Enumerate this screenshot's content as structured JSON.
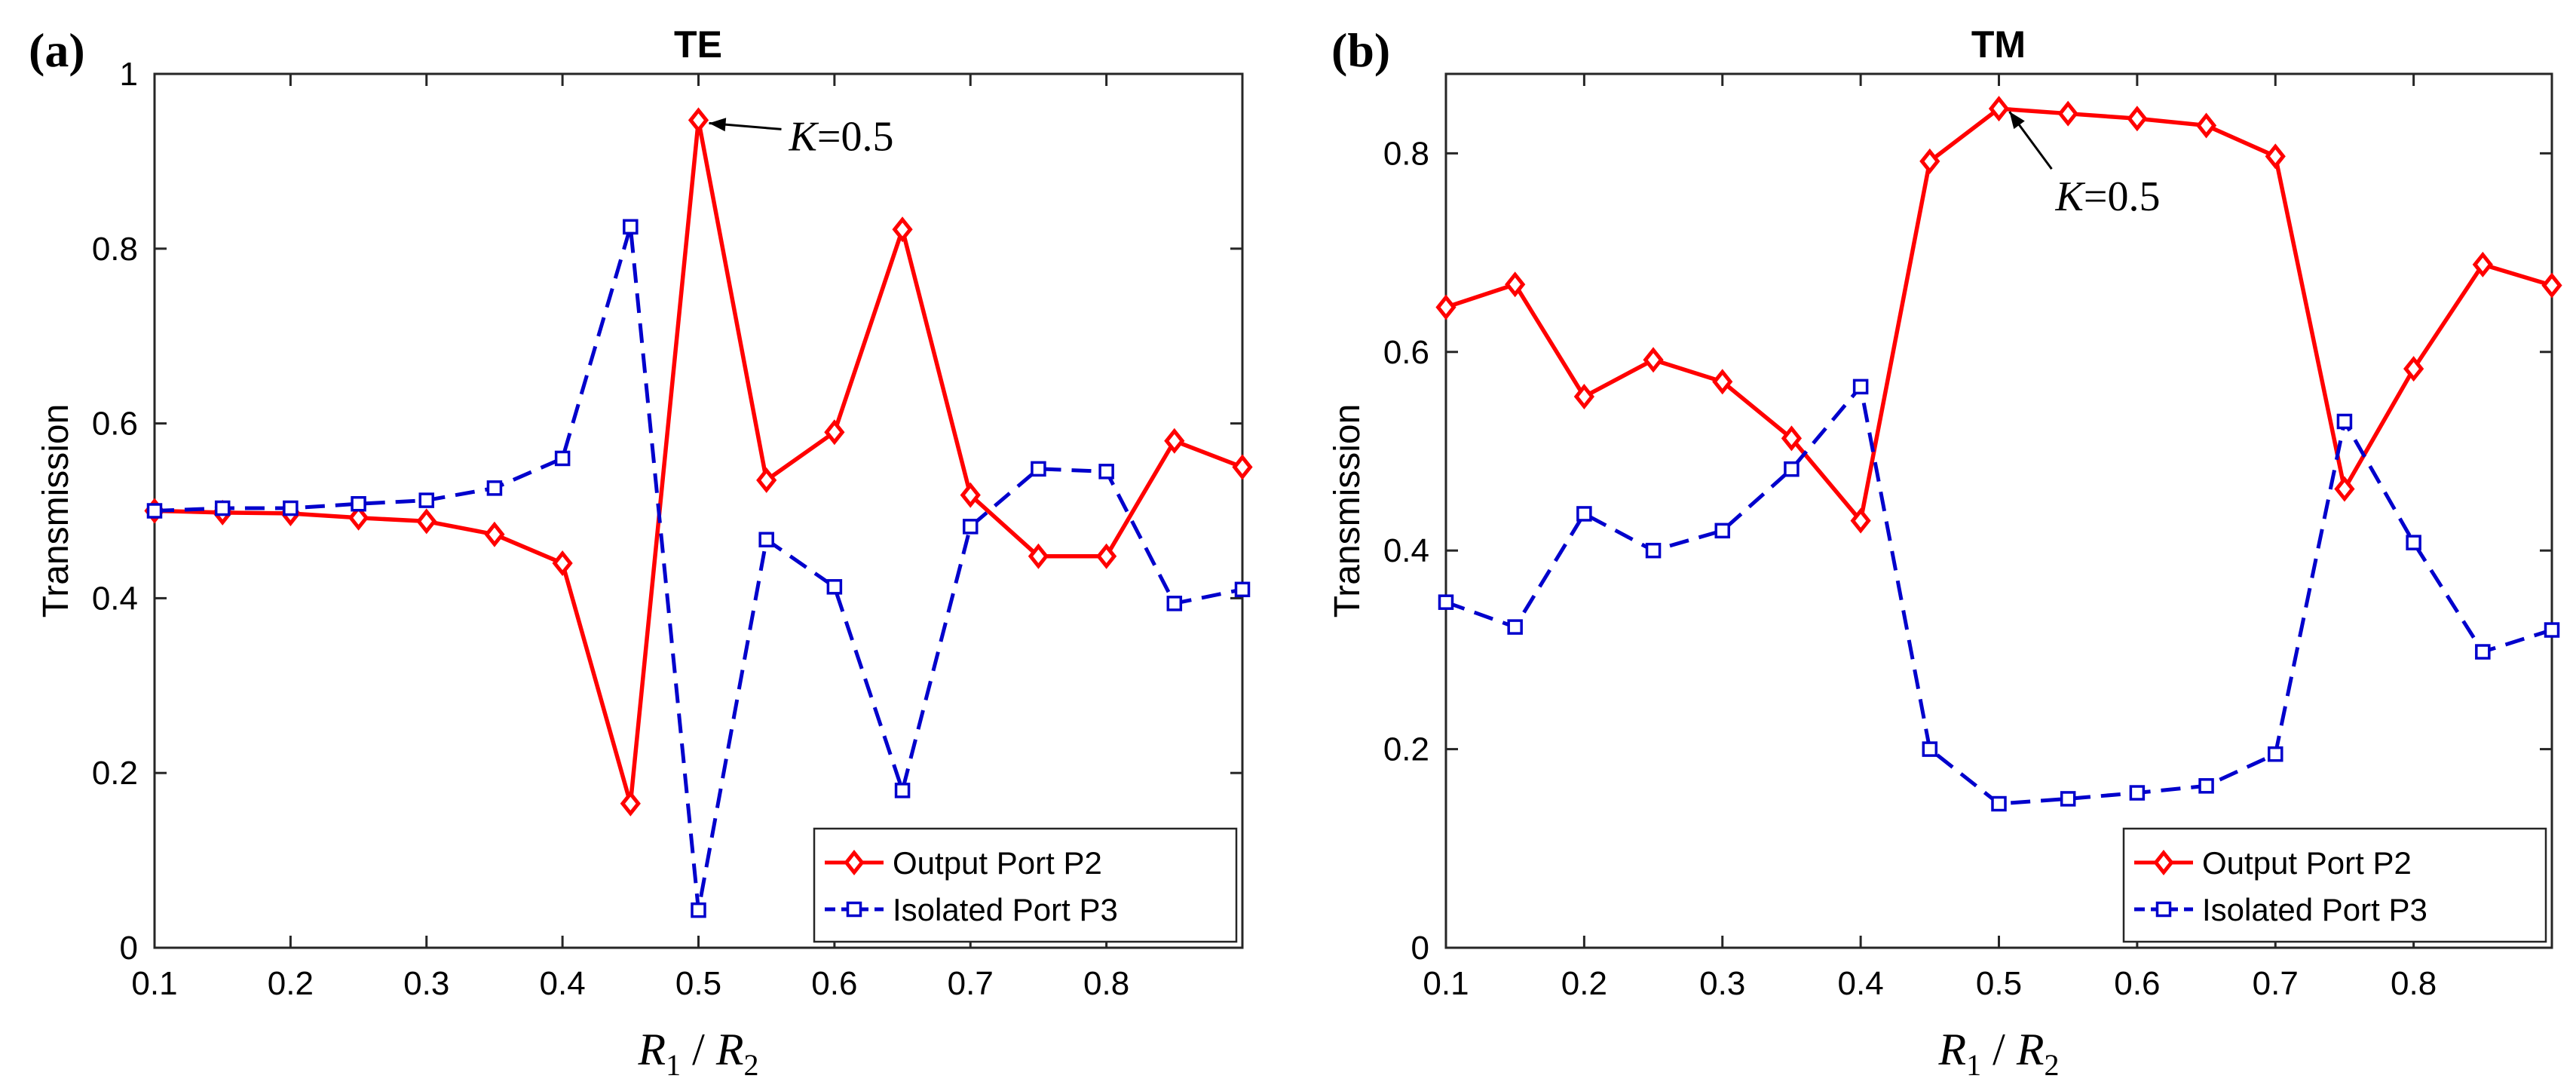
{
  "colors": {
    "series1": "#ff0000",
    "series2": "#0000cc",
    "axis": "#262626"
  },
  "chart_data": [
    {
      "type": "line",
      "panel_label": "(a)",
      "title": "TE",
      "xlabel_parts": [
        "R",
        "1",
        " / ",
        "R",
        "2"
      ],
      "ylabel": "Transmission",
      "xlim": [
        0.1,
        0.9
      ],
      "ylim": [
        0,
        1
      ],
      "xticks": [
        0.1,
        0.2,
        0.3,
        0.4,
        0.5,
        0.6,
        0.7,
        0.8
      ],
      "yticks": [
        0,
        0.2,
        0.4,
        0.6,
        0.8,
        1
      ],
      "xtick_labels": [
        "0.1",
        "0.2",
        "0.3",
        "0.4",
        "0.5",
        "0.6",
        "0.7",
        "0.8"
      ],
      "ytick_labels": [
        "0",
        "0.2",
        "0.4",
        "0.6",
        "0.8",
        "1"
      ],
      "x": [
        0.1,
        0.15,
        0.2,
        0.25,
        0.3,
        0.35,
        0.4,
        0.45,
        0.5,
        0.55,
        0.6,
        0.65,
        0.7,
        0.75,
        0.8,
        0.85,
        0.9
      ],
      "series": [
        {
          "name": "Output Port P2",
          "color": "#ff0000",
          "line": "solid",
          "marker": "diamond",
          "values": [
            0.5,
            0.498,
            0.497,
            0.492,
            0.488,
            0.473,
            0.44,
            0.165,
            0.947,
            0.535,
            0.59,
            0.822,
            0.518,
            0.448,
            0.448,
            0.58,
            0.55
          ]
        },
        {
          "name": "Isolated Port P3",
          "color": "#0000cc",
          "line": "dashed",
          "marker": "square",
          "values": [
            0.5,
            0.503,
            0.503,
            0.508,
            0.512,
            0.526,
            0.56,
            0.825,
            0.043,
            0.467,
            0.413,
            0.18,
            0.482,
            0.548,
            0.545,
            0.394,
            0.41
          ]
        }
      ],
      "annotation": {
        "text_italic": "K",
        "text_rest": "=0.5",
        "x": 0.5,
        "y": 0.947
      },
      "legend_loc": "bottom-right"
    },
    {
      "type": "line",
      "panel_label": "(b)",
      "title": "TM",
      "xlabel_parts": [
        "R",
        "1",
        " / ",
        "R",
        "2"
      ],
      "ylabel": "Transmission",
      "xlim": [
        0.1,
        0.9
      ],
      "ylim": [
        0,
        0.88
      ],
      "xticks": [
        0.1,
        0.2,
        0.3,
        0.4,
        0.5,
        0.6,
        0.7,
        0.8
      ],
      "yticks": [
        0,
        0.2,
        0.4,
        0.6,
        0.8
      ],
      "xtick_labels": [
        "0.1",
        "0.2",
        "0.3",
        "0.4",
        "0.5",
        "0.6",
        "0.7",
        "0.8"
      ],
      "ytick_labels": [
        "0",
        "0.2",
        "0.4",
        "0.6",
        "0.8"
      ],
      "x": [
        0.1,
        0.15,
        0.2,
        0.25,
        0.3,
        0.35,
        0.4,
        0.45,
        0.5,
        0.55,
        0.6,
        0.65,
        0.7,
        0.75,
        0.8,
        0.85,
        0.9
      ],
      "series": [
        {
          "name": "Output Port P2",
          "color": "#ff0000",
          "line": "solid",
          "marker": "diamond",
          "values": [
            0.645,
            0.668,
            0.555,
            0.592,
            0.57,
            0.513,
            0.43,
            0.792,
            0.845,
            0.84,
            0.835,
            0.828,
            0.797,
            0.462,
            0.583,
            0.688,
            0.667
          ]
        },
        {
          "name": "Isolated Port P3",
          "color": "#0000cc",
          "line": "dashed",
          "marker": "square",
          "values": [
            0.348,
            0.323,
            0.437,
            0.4,
            0.42,
            0.482,
            0.565,
            0.2,
            0.145,
            0.15,
            0.156,
            0.163,
            0.195,
            0.53,
            0.408,
            0.298,
            0.32
          ]
        }
      ],
      "annotation": {
        "text_italic": "K",
        "text_rest": "=0.5",
        "x": 0.5,
        "y": 0.845
      },
      "legend_loc": "bottom-right"
    }
  ]
}
